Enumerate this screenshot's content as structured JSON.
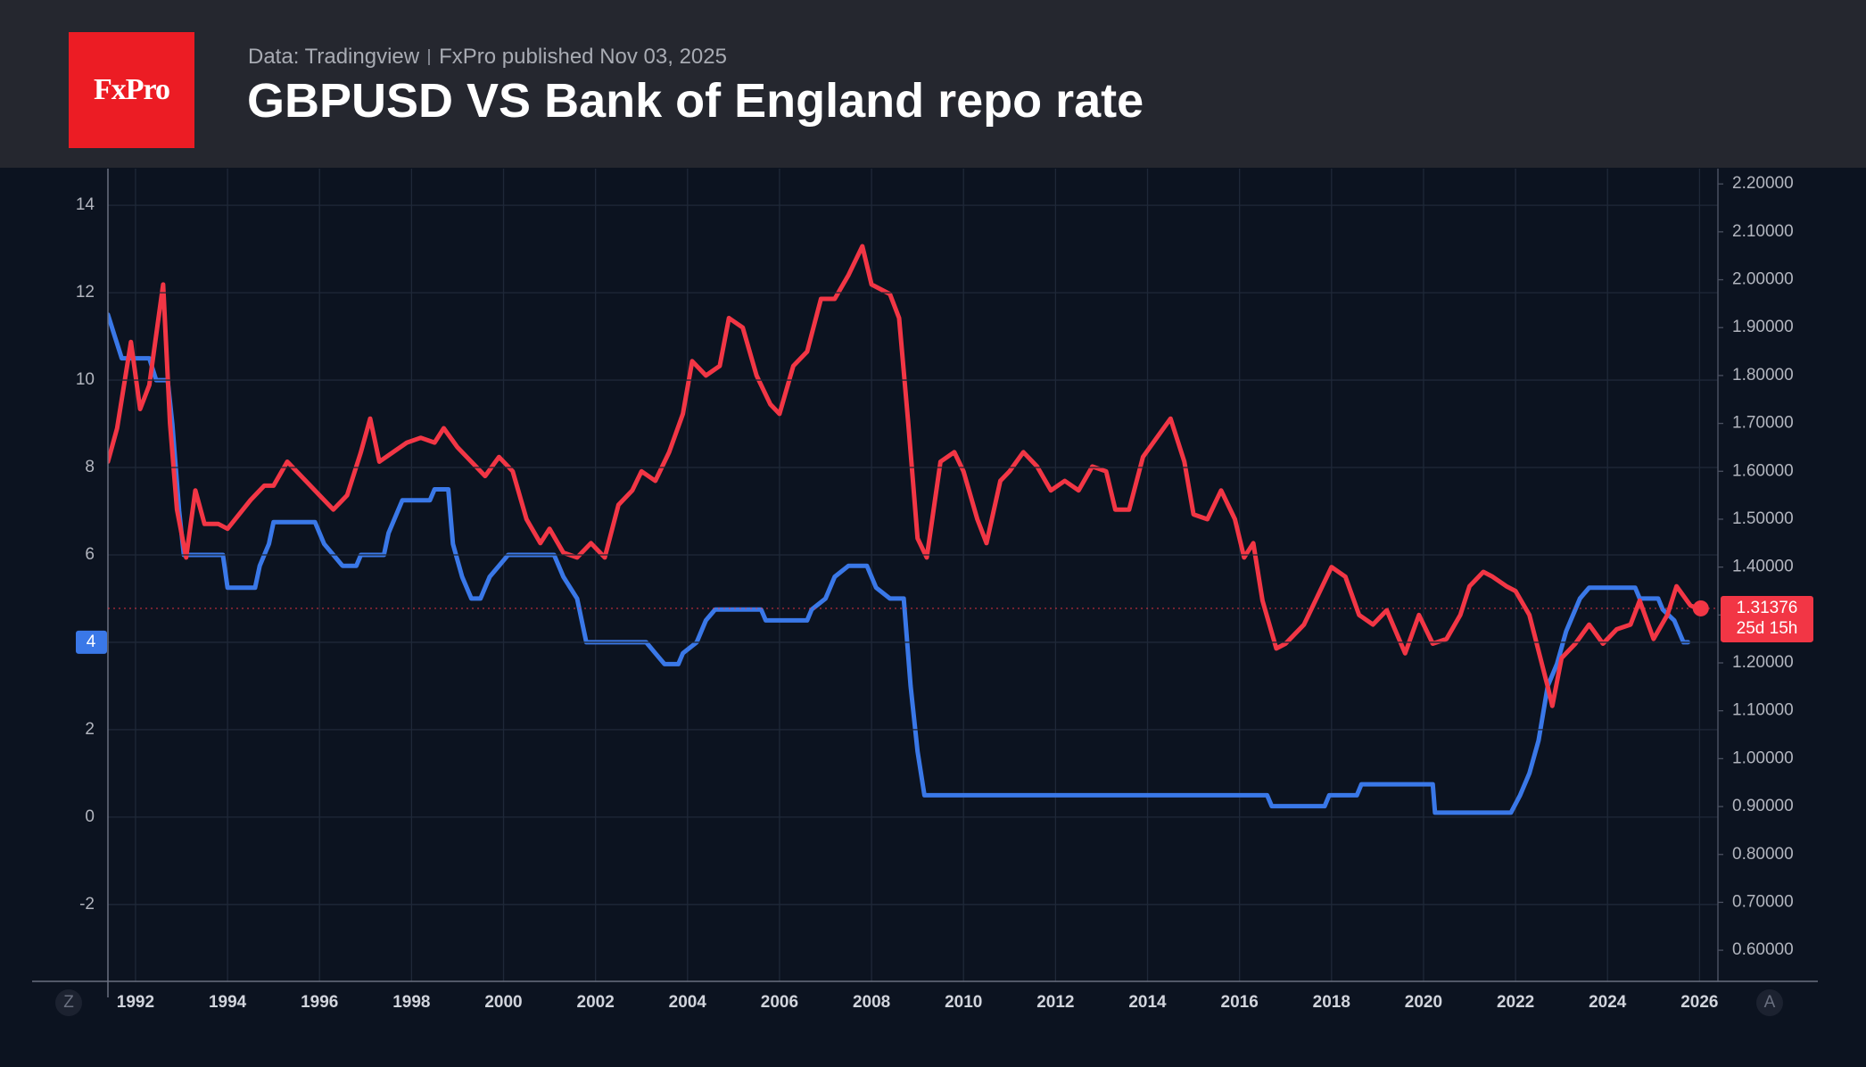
{
  "header": {
    "logo": "FxPro",
    "source": "Data: Tradingview",
    "published": "FxPro published Nov 03, 2025"
  },
  "ui": {
    "buttons": [
      "Z",
      "A"
    ]
  },
  "chart_data": {
    "type": "line",
    "title": "GBPUSD VS Bank of England repo rate",
    "xlim": [
      1991.4,
      2026.4
    ],
    "xticks": [
      1992,
      1994,
      1996,
      1998,
      2000,
      2002,
      2004,
      2006,
      2008,
      2010,
      2012,
      2014,
      2016,
      2018,
      2020,
      2022,
      2024,
      2026
    ],
    "ylim": [
      -3.76,
      14.84
    ],
    "yticks": [
      -2,
      0,
      2,
      4,
      6,
      8,
      10,
      12,
      14
    ],
    "y2lim": [
      0.535,
      2.232
    ],
    "y2ticks": [
      {
        "value": 0.6,
        "label": "0.60000"
      },
      {
        "value": 0.7,
        "label": "0.70000"
      },
      {
        "value": 0.8,
        "label": "0.80000"
      },
      {
        "value": 0.9,
        "label": "0.90000"
      },
      {
        "value": 1.0,
        "label": "1.00000"
      },
      {
        "value": 1.1,
        "label": "1.10000"
      },
      {
        "value": 1.2,
        "label": "1.20000"
      },
      {
        "value": 1.3,
        "label": "1.30000"
      },
      {
        "value": 1.4,
        "label": "1.40000"
      },
      {
        "value": 1.5,
        "label": "1.50000"
      },
      {
        "value": 1.6,
        "label": "1.60000"
      },
      {
        "value": 1.7,
        "label": "1.70000"
      },
      {
        "value": 1.8,
        "label": "1.80000"
      },
      {
        "value": 1.9,
        "label": "1.90000"
      },
      {
        "value": 2.0,
        "label": "2.00000"
      },
      {
        "value": 2.1,
        "label": "2.10000"
      },
      {
        "value": 2.2,
        "label": "2.20000"
      }
    ],
    "grid": true,
    "annotations": [
      "25d 15h"
    ],
    "series": [
      {
        "color": "#3a78e8",
        "axis": "y",
        "x": [
          1991.4,
          1991.55,
          1991.7,
          1992.3,
          1992.45,
          1992.7,
          1992.8,
          1992.95,
          1993.05,
          1993.9,
          1994.0,
          1994.6,
          1994.7,
          1994.9,
          1995.0,
          1995.9,
          1996.1,
          1996.5,
          1996.8,
          1996.9,
          1997.4,
          1997.5,
          1997.7,
          1997.8,
          1998.4,
          1998.5,
          1998.8,
          1998.9,
          1999.1,
          1999.3,
          1999.5,
          1999.7,
          1999.9,
          2000.1,
          2001.1,
          2001.3,
          2001.6,
          2001.8,
          2003.1,
          2003.3,
          2003.5,
          2003.8,
          2003.9,
          2004.2,
          2004.4,
          2004.6,
          2005.6,
          2005.7,
          2006.6,
          2006.7,
          2007.0,
          2007.2,
          2007.5,
          2007.9,
          2008.1,
          2008.4,
          2008.7,
          2008.85,
          2009.0,
          2009.15,
          2016.6,
          2016.7,
          2017.85,
          2017.95,
          2018.55,
          2018.65,
          2020.2,
          2020.25,
          2021.9,
          2022.1,
          2022.3,
          2022.5,
          2022.7,
          2022.9,
          2023.1,
          2023.4,
          2023.6,
          2024.6,
          2024.7,
          2025.1,
          2025.2,
          2025.45,
          2025.55,
          2025.65,
          2025.75
        ],
        "values": [
          11.5,
          11,
          10.5,
          10.5,
          10,
          10,
          9,
          7,
          6,
          6,
          5.25,
          5.25,
          5.75,
          6.25,
          6.75,
          6.75,
          6.25,
          5.75,
          5.75,
          6,
          6,
          6.5,
          7,
          7.25,
          7.25,
          7.5,
          7.5,
          6.25,
          5.5,
          5,
          5,
          5.5,
          5.75,
          6,
          6,
          5.5,
          5,
          4,
          4,
          3.75,
          3.5,
          3.5,
          3.75,
          4,
          4.5,
          4.75,
          4.75,
          4.5,
          4.5,
          4.75,
          5,
          5.5,
          5.75,
          5.75,
          5.25,
          5,
          5,
          3,
          1.5,
          0.5,
          0.5,
          0.25,
          0.25,
          0.5,
          0.5,
          0.75,
          0.75,
          0.1,
          0.1,
          0.5,
          1,
          1.75,
          3,
          3.5,
          4.25,
          5,
          5.25,
          5.25,
          5,
          5,
          4.75,
          4.5,
          4.25,
          4,
          4
        ]
      },
      {
        "color": "#f23645",
        "axis": "y2",
        "x": [
          1991.4,
          1991.6,
          1991.9,
          1992.1,
          1992.3,
          1992.5,
          1992.6,
          1992.75,
          1992.9,
          1993.1,
          1993.3,
          1993.5,
          1993.8,
          1994.0,
          1994.5,
          1994.8,
          1995.0,
          1995.3,
          1995.7,
          1996.0,
          1996.3,
          1996.6,
          1996.9,
          1997.1,
          1997.3,
          1997.6,
          1997.9,
          1998.2,
          1998.5,
          1998.7,
          1999.0,
          1999.3,
          1999.6,
          1999.9,
          2000.2,
          2000.5,
          2000.8,
          2001.0,
          2001.3,
          2001.6,
          2001.9,
          2002.2,
          2002.5,
          2002.8,
          2003.0,
          2003.3,
          2003.6,
          2003.9,
          2004.1,
          2004.4,
          2004.7,
          2004.9,
          2005.2,
          2005.5,
          2005.8,
          2006.0,
          2006.3,
          2006.6,
          2006.9,
          2007.2,
          2007.5,
          2007.8,
          2008.0,
          2008.4,
          2008.6,
          2008.8,
          2009.0,
          2009.2,
          2009.5,
          2009.8,
          2010.0,
          2010.3,
          2010.5,
          2010.8,
          2011.0,
          2011.3,
          2011.6,
          2011.9,
          2012.2,
          2012.5,
          2012.8,
          2013.1,
          2013.3,
          2013.6,
          2013.9,
          2014.2,
          2014.5,
          2014.8,
          2015.0,
          2015.3,
          2015.6,
          2015.9,
          2016.1,
          2016.3,
          2016.5,
          2016.8,
          2017.0,
          2017.4,
          2017.7,
          2018.0,
          2018.3,
          2018.6,
          2018.9,
          2019.2,
          2019.6,
          2019.9,
          2020.2,
          2020.5,
          2020.8,
          2021.0,
          2021.3,
          2021.5,
          2021.8,
          2022.0,
          2022.3,
          2022.7,
          2022.8,
          2023.0,
          2023.3,
          2023.6,
          2023.9,
          2024.2,
          2024.5,
          2024.7,
          2025.0,
          2025.3,
          2025.5,
          2025.8,
          2025.95
        ],
        "values": [
          1.62,
          1.69,
          1.87,
          1.73,
          1.78,
          1.92,
          1.99,
          1.7,
          1.52,
          1.42,
          1.56,
          1.49,
          1.49,
          1.48,
          1.54,
          1.57,
          1.57,
          1.62,
          1.58,
          1.55,
          1.52,
          1.55,
          1.64,
          1.71,
          1.62,
          1.64,
          1.66,
          1.67,
          1.66,
          1.69,
          1.65,
          1.62,
          1.59,
          1.63,
          1.6,
          1.5,
          1.45,
          1.48,
          1.43,
          1.42,
          1.45,
          1.42,
          1.53,
          1.56,
          1.6,
          1.58,
          1.64,
          1.72,
          1.83,
          1.8,
          1.82,
          1.92,
          1.9,
          1.8,
          1.74,
          1.72,
          1.82,
          1.85,
          1.96,
          1.96,
          2.01,
          2.07,
          1.99,
          1.97,
          1.92,
          1.7,
          1.46,
          1.42,
          1.62,
          1.64,
          1.6,
          1.5,
          1.45,
          1.58,
          1.6,
          1.64,
          1.61,
          1.56,
          1.58,
          1.56,
          1.61,
          1.6,
          1.52,
          1.52,
          1.63,
          1.67,
          1.71,
          1.62,
          1.51,
          1.5,
          1.56,
          1.5,
          1.42,
          1.45,
          1.33,
          1.23,
          1.24,
          1.28,
          1.34,
          1.4,
          1.38,
          1.3,
          1.28,
          1.31,
          1.22,
          1.3,
          1.24,
          1.25,
          1.3,
          1.36,
          1.39,
          1.38,
          1.36,
          1.35,
          1.3,
          1.15,
          1.11,
          1.21,
          1.24,
          1.28,
          1.24,
          1.27,
          1.28,
          1.33,
          1.25,
          1.3,
          1.36,
          1.32,
          1.31376
        ]
      }
    ]
  }
}
